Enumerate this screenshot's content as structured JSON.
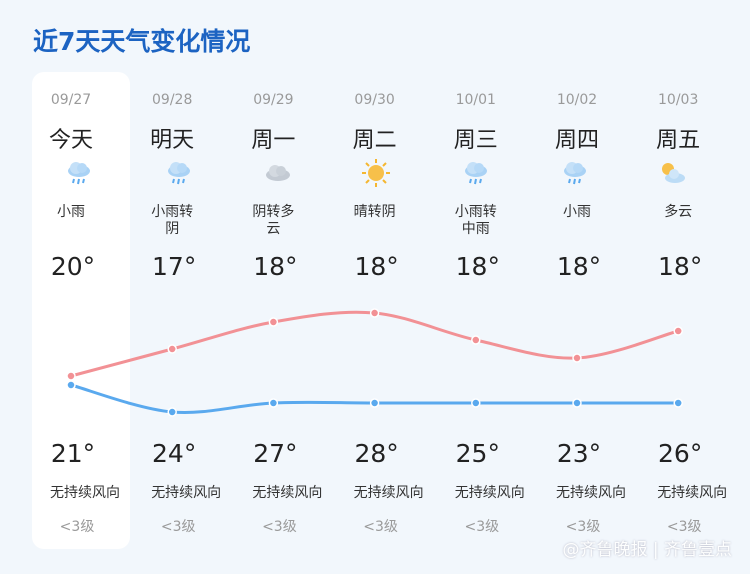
{
  "chart_data": {
    "type": "line",
    "title": "近7天天气变化情况",
    "categories": [
      "09/27",
      "09/28",
      "09/29",
      "09/30",
      "10/01",
      "10/02",
      "10/03"
    ],
    "days": [
      "今天",
      "明天",
      "周一",
      "周二",
      "周三",
      "周四",
      "周五"
    ],
    "weather": [
      "小雨",
      "小雨转阴",
      "阴转多云",
      "晴转阴",
      "小雨转中雨",
      "小雨",
      "多云"
    ],
    "series": [
      {
        "color": "#5aa9ee",
        "values": [
          20,
          17,
          18,
          18,
          18,
          18,
          18
        ],
        "value_labels": [
          "20°",
          "17°",
          "18°",
          "18°",
          "18°",
          "18°",
          "18°"
        ]
      },
      {
        "color": "#f29195",
        "values": [
          21,
          24,
          27,
          28,
          25,
          23,
          26
        ],
        "value_labels": [
          "21°",
          "24°",
          "27°",
          "28°",
          "25°",
          "23°",
          "26°"
        ]
      }
    ],
    "wind": [
      "无持续风向",
      "无持续风向",
      "无持续风向",
      "无持续风向",
      "无持续风向",
      "无持续风向",
      "无持续风向"
    ],
    "wind_level": [
      "<3级",
      "<3级",
      "<3级",
      "<3级",
      "<3级",
      "<3级",
      "<3级"
    ],
    "ylim": [
      30,
      15
    ],
    "watermark": "@齐鲁晚报 | 齐鲁壹点"
  }
}
